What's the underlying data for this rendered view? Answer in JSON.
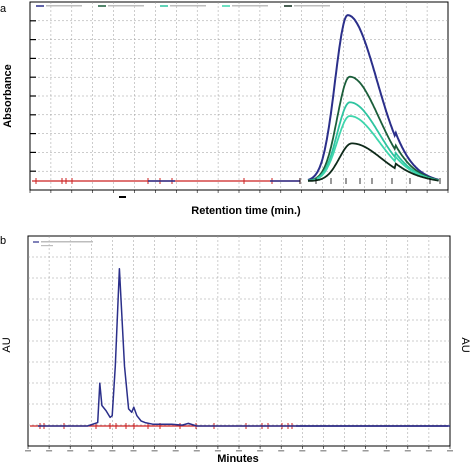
{
  "chart_data": [
    {
      "panel": "a",
      "type": "line",
      "xlabel": "Retention time (min.)",
      "ylabel": "Absorbance",
      "xlim": [
        0,
        20
      ],
      "ylim": [
        0,
        1
      ],
      "grid": true,
      "legend_position": "top",
      "baseline_color": "#cc2222",
      "series": [
        {
          "color": "#2b2f8a",
          "peak_x": 15.2,
          "peak_y": 0.97
        },
        {
          "color": "#1b5e3a",
          "peak_x": 15.3,
          "peak_y": 0.61
        },
        {
          "color": "#2ec4a0",
          "peak_x": 15.3,
          "peak_y": 0.46
        },
        {
          "color": "#3fd6ad",
          "peak_x": 15.3,
          "peak_y": 0.38
        },
        {
          "color": "#0e2a1a",
          "peak_x": 15.4,
          "peak_y": 0.22
        }
      ]
    },
    {
      "panel": "b",
      "type": "line",
      "xlabel": "Minutes",
      "ylabel": "AU",
      "ylabel_right": "AU",
      "xlim": [
        0,
        20
      ],
      "ylim": [
        -0.05,
        1
      ],
      "grid": true,
      "legend_position": "top-left",
      "baseline_color": "#cc2222",
      "series": [
        {
          "color": "#2b2f8a",
          "x": [
            0,
            2.4,
            2.9,
            3.0,
            3.1,
            3.3,
            3.5,
            3.6,
            3.75,
            3.95,
            4.2,
            4.4,
            4.55,
            4.65,
            4.8,
            5.0,
            5.2,
            5.6,
            6.5,
            7.0,
            7.3,
            7.7,
            8.5,
            12,
            20
          ],
          "y": [
            0,
            0,
            0.02,
            0.25,
            0.12,
            0.09,
            0.05,
            0.06,
            0.35,
            0.92,
            0.35,
            0.1,
            0.08,
            0.11,
            0.06,
            0.03,
            0.02,
            0.01,
            0.01,
            0.005,
            0.015,
            0.0,
            0.0,
            0.0,
            0.0
          ]
        }
      ]
    }
  ]
}
